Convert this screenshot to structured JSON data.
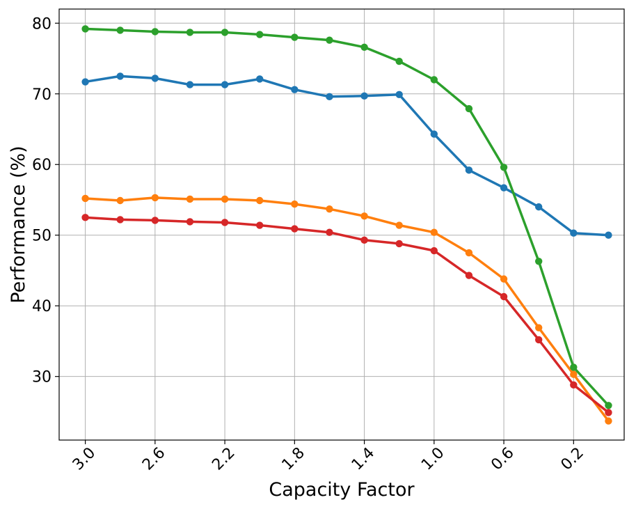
{
  "chart_data": {
    "type": "line",
    "title": "",
    "xlabel": "Capacity Factor",
    "ylabel": "Performance (%)",
    "x_reversed": true,
    "grid": true,
    "legend": "none",
    "x": [
      3.0,
      2.8,
      2.6,
      2.4,
      2.2,
      2.0,
      1.8,
      1.6,
      1.4,
      1.2,
      1.0,
      0.8,
      0.6,
      0.4,
      0.2,
      0.0
    ],
    "xticks": [
      3.0,
      2.6,
      2.2,
      1.8,
      1.4,
      1.0,
      0.6,
      0.2
    ],
    "xtick_labels": [
      "3.0",
      "2.6",
      "2.2",
      "1.8",
      "1.4",
      "1.0",
      "0.6",
      "0.2"
    ],
    "xlim": [
      3.15,
      -0.09
    ],
    "yticks": [
      30,
      40,
      50,
      60,
      70,
      80
    ],
    "ytick_labels": [
      "30",
      "40",
      "50",
      "60",
      "70",
      "80"
    ],
    "ylim": [
      21,
      82
    ],
    "series": [
      {
        "name": "blue",
        "color": "#1f77b4",
        "values": [
          71.7,
          72.5,
          72.2,
          71.3,
          71.3,
          72.1,
          70.6,
          69.6,
          69.7,
          69.9,
          64.3,
          59.2,
          56.7,
          54.0,
          50.3,
          50.0
        ]
      },
      {
        "name": "orange",
        "color": "#ff7f0e",
        "values": [
          55.2,
          54.9,
          55.3,
          55.1,
          55.1,
          54.9,
          54.4,
          53.7,
          52.7,
          51.4,
          50.4,
          47.5,
          43.8,
          36.9,
          30.3,
          23.7
        ]
      },
      {
        "name": "green",
        "color": "#2ca02c",
        "values": [
          79.2,
          79.0,
          78.8,
          78.7,
          78.7,
          78.4,
          78.0,
          77.6,
          76.6,
          74.6,
          72.0,
          67.9,
          59.6,
          46.3,
          31.3,
          25.9
        ]
      },
      {
        "name": "red",
        "color": "#d62728",
        "values": [
          52.5,
          52.2,
          52.1,
          51.9,
          51.8,
          51.4,
          50.9,
          50.4,
          49.3,
          48.8,
          47.8,
          44.3,
          41.3,
          35.2,
          28.8,
          24.9
        ]
      }
    ]
  }
}
